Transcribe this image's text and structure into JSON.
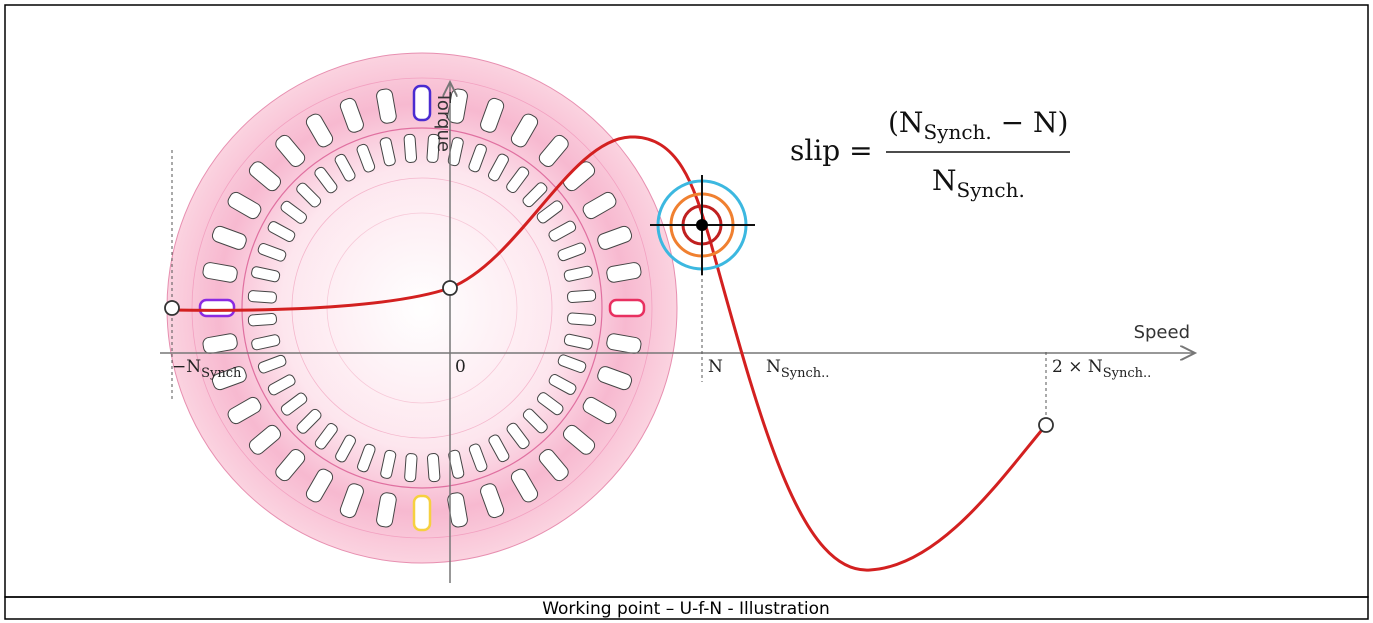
{
  "axes": {
    "y_label": "Torque",
    "x_label": "Speed"
  },
  "x_labels": [
    {
      "main": "−N",
      "sub": "Synch"
    },
    {
      "main": "0"
    },
    {
      "main": "N"
    },
    {
      "main": "N",
      "sub": "Synch.."
    },
    {
      "main": "2 × N",
      "sub": "Synch.."
    }
  ],
  "formula": {
    "lhs": "slip =",
    "num_open": "(N",
    "num_sub": "Synch.",
    "num_rest": " − N)",
    "den": "N",
    "den_sub": "Synch."
  },
  "caption": "Working point – U-f-N - Illustration"
}
